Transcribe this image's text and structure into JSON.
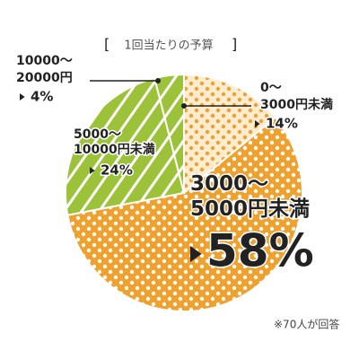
{
  "chart_data": {
    "type": "pie",
    "title": "1回当たりの予算",
    "categories": [
      "0～3000円未満",
      "3000～5000円未満",
      "5000～10000円未満",
      "10000～20000円"
    ],
    "values": [
      14,
      58,
      24,
      4
    ],
    "value_labels": [
      "14%",
      "58%",
      "24%",
      "4%"
    ],
    "colors": [
      "#fdecd0",
      "#f0a02c",
      "#9cc23a",
      "#9cc23a"
    ],
    "note": "※70人が回答"
  }
}
